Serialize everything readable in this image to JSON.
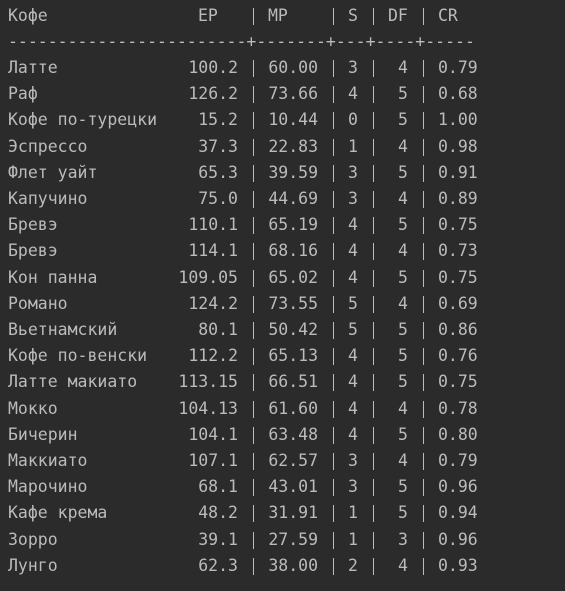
{
  "table": {
    "header": [
      "Кофе",
      "EP",
      "MP",
      "S",
      "DF",
      "CR"
    ],
    "separator": "------------------------+-------+---+----+-----",
    "rows": [
      [
        "Латте",
        "100.2",
        "60.00",
        "3",
        "4",
        "0.79"
      ],
      [
        "Раф",
        "126.2",
        "73.66",
        "4",
        "5",
        "0.68"
      ],
      [
        "Кофе по-турецки",
        "15.2",
        "10.44",
        "0",
        "5",
        "1.00"
      ],
      [
        "Эспрессо",
        "37.3",
        "22.83",
        "1",
        "4",
        "0.98"
      ],
      [
        "Флет уайт",
        "65.3",
        "39.59",
        "3",
        "5",
        "0.91"
      ],
      [
        "Капучино",
        "75.0",
        "44.69",
        "3",
        "4",
        "0.89"
      ],
      [
        "Бревэ",
        "110.1",
        "65.19",
        "4",
        "5",
        "0.75"
      ],
      [
        "Бревэ",
        "114.1",
        "68.16",
        "4",
        "4",
        "0.73"
      ],
      [
        "Кон панна",
        "109.05",
        "65.02",
        "4",
        "5",
        "0.75"
      ],
      [
        "Романо",
        "124.2",
        "73.55",
        "5",
        "4",
        "0.69"
      ],
      [
        "Вьетнамский",
        "80.1",
        "50.42",
        "5",
        "5",
        "0.86"
      ],
      [
        "Кофе по-венски",
        "112.2",
        "65.13",
        "4",
        "5",
        "0.76"
      ],
      [
        "Латте макиато",
        "113.15",
        "66.51",
        "4",
        "5",
        "0.75"
      ],
      [
        "Мокко",
        "104.13",
        "61.60",
        "4",
        "4",
        "0.78"
      ],
      [
        "Бичерин",
        "104.1",
        "63.48",
        "4",
        "5",
        "0.80"
      ],
      [
        "Маккиато",
        "107.1",
        "62.57",
        "3",
        "4",
        "0.79"
      ],
      [
        "Марочино",
        "68.1",
        "43.01",
        "3",
        "5",
        "0.96"
      ],
      [
        "Кафе крема",
        "48.2",
        "31.91",
        "1",
        "5",
        "0.94"
      ],
      [
        "Зорро",
        "39.1",
        "27.59",
        "1",
        "3",
        "0.96"
      ],
      [
        "Лунго",
        "62.3",
        "38.00",
        "2",
        "4",
        "0.93"
      ]
    ]
  }
}
